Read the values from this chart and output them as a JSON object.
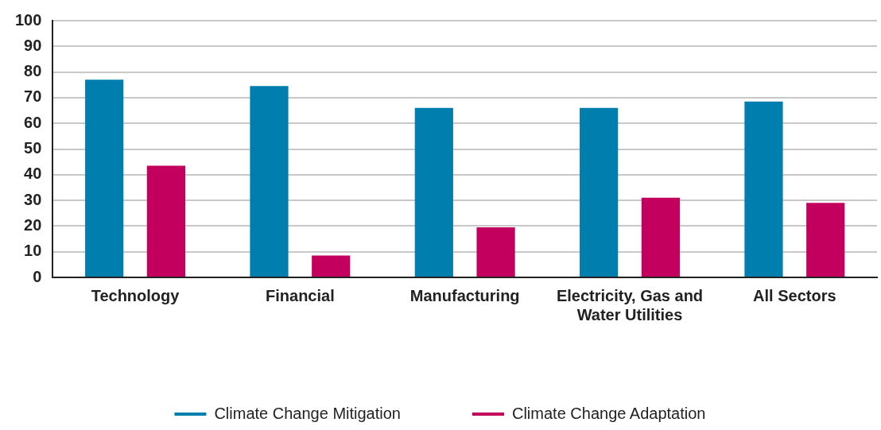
{
  "chart_data": {
    "type": "bar",
    "categories": [
      "Technology",
      "Financial",
      "Manufacturing",
      "Electricity, Gas and Water Utilities",
      "All Sectors"
    ],
    "series": [
      {
        "name": "Climate Change Mitigation",
        "color": "#007fae",
        "values": [
          77,
          74.5,
          66,
          66,
          68.5
        ]
      },
      {
        "name": "Climate Change Adaptation",
        "color": "#c4005f",
        "values": [
          43.5,
          8.5,
          19.5,
          31,
          29
        ]
      }
    ],
    "ylim": [
      0,
      100
    ],
    "yticks": [
      0,
      10,
      20,
      30,
      40,
      50,
      60,
      70,
      80,
      90,
      100
    ],
    "grid": "y",
    "legend": "bottom"
  }
}
